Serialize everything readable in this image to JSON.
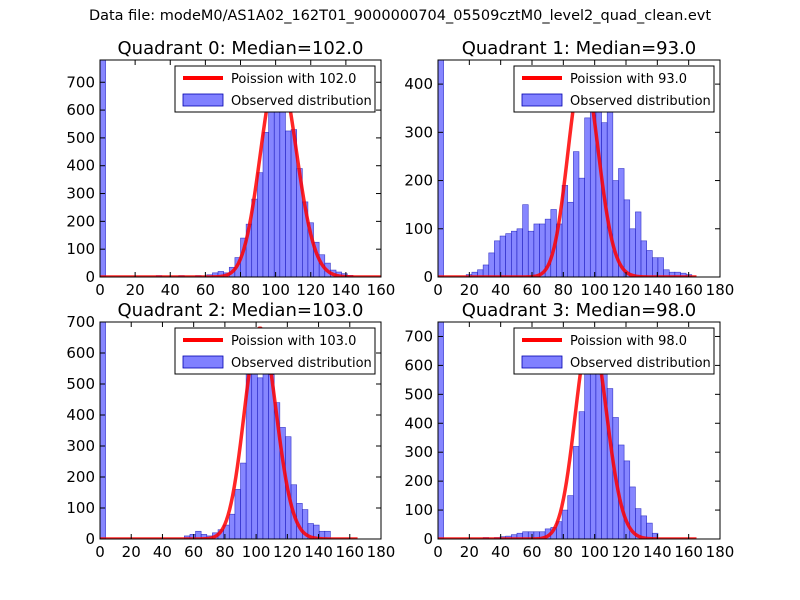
{
  "figure": {
    "suptitle": "Data file: modeM0/AS1A02_162T01_9000000704_05509cztM0_level2_quad_clean.evt"
  },
  "colors": {
    "poisson_line": "#ff0000",
    "histogram_fill": "#8080ff",
    "histogram_edge": "#0000b0"
  },
  "chart_data": [
    {
      "type": "bar",
      "title": "Quadrant 0: Median=102.0",
      "xlim": [
        0,
        160
      ],
      "ylim": [
        0,
        780
      ],
      "xticks": [
        0,
        20,
        40,
        60,
        80,
        100,
        120,
        140,
        160
      ],
      "yticks": [
        0,
        100,
        200,
        300,
        400,
        500,
        600,
        700
      ],
      "legend_position": "top-right",
      "legend": {
        "line_label": "Poission with 102.0",
        "hist_label": "Observed distribution"
      },
      "poisson_mean": 102.0,
      "poisson_peak": 750,
      "hist": {
        "bin_width": 3.2,
        "bin_starts": [
          0,
          32,
          44.8,
          54.4,
          60.8,
          64,
          67.2,
          70.4,
          73.6,
          76.8,
          80,
          83.2,
          86.4,
          89.6,
          92.8,
          96,
          99.2,
          102.4,
          105.6,
          108.8,
          112,
          115.2,
          118.4,
          121.6,
          124.8,
          128,
          131.2,
          134.4,
          137.6,
          140.8
        ],
        "counts": [
          780,
          5,
          5,
          5,
          8,
          15,
          20,
          15,
          35,
          70,
          140,
          190,
          280,
          375,
          520,
          645,
          720,
          600,
          525,
          530,
          390,
          270,
          195,
          125,
          80,
          50,
          25,
          18,
          12,
          6
        ]
      }
    },
    {
      "type": "bar",
      "title": "Quadrant 1: Median=93.0",
      "xlim": [
        0,
        180
      ],
      "ylim": [
        0,
        450
      ],
      "xticks": [
        0,
        20,
        40,
        60,
        80,
        100,
        120,
        140,
        160,
        180
      ],
      "yticks": [
        0,
        100,
        200,
        300,
        400
      ],
      "legend_position": "top-right",
      "legend": {
        "line_label": "Poission with 93.0",
        "hist_label": "Observed distribution"
      },
      "poisson_mean": 93.0,
      "poisson_peak": 430,
      "hist": {
        "bin_width": 3.6,
        "bin_starts": [
          0,
          18,
          21.6,
          25.2,
          28.8,
          32.4,
          36,
          39.6,
          43.2,
          46.8,
          50.4,
          54,
          57.6,
          61.2,
          64.8,
          68.4,
          72,
          75.6,
          79.2,
          82.8,
          86.4,
          90,
          93.6,
          97.2,
          100.8,
          104.4,
          108,
          111.6,
          115.2,
          118.8,
          122.4,
          126,
          129.6,
          133.2,
          136.8,
          140.4,
          144,
          147.6,
          151.2,
          154.8,
          158.4
        ],
        "counts": [
          450,
          5,
          10,
          15,
          25,
          50,
          75,
          85,
          90,
          95,
          100,
          150,
          95,
          110,
          110,
          120,
          140,
          110,
          190,
          155,
          260,
          205,
          330,
          350,
          420,
          320,
          370,
          200,
          225,
          160,
          100,
          135,
          75,
          55,
          40,
          40,
          15,
          10,
          10,
          8,
          5
        ]
      }
    },
    {
      "type": "bar",
      "title": "Quadrant 2: Median=103.0",
      "xlim": [
        0,
        180
      ],
      "ylim": [
        0,
        700
      ],
      "xticks": [
        0,
        20,
        40,
        60,
        80,
        100,
        120,
        140,
        160,
        180
      ],
      "yticks": [
        0,
        100,
        200,
        300,
        400,
        500,
        600,
        700
      ],
      "legend_position": "top-right",
      "legend": {
        "line_label": "Poission with 103.0",
        "hist_label": "Observed distribution"
      },
      "poisson_mean": 103.0,
      "poisson_peak": 680,
      "hist": {
        "bin_width": 3.6,
        "bin_starts": [
          0,
          54,
          57.6,
          61.2,
          64.8,
          68.4,
          72,
          75.6,
          79.2,
          82.8,
          86.4,
          90,
          93.6,
          97.2,
          100.8,
          104.4,
          108,
          111.6,
          115.2,
          118.8,
          122.4,
          126,
          129.6,
          133.2,
          136.8,
          140.4,
          144
        ],
        "counts": [
          700,
          10,
          15,
          25,
          15,
          10,
          20,
          30,
          45,
          80,
          160,
          245,
          535,
          605,
          520,
          625,
          530,
          440,
          360,
          330,
          175,
          115,
          95,
          50,
          45,
          25,
          25
        ]
      }
    },
    {
      "type": "bar",
      "title": "Quadrant 3: Median=98.0",
      "xlim": [
        0,
        180
      ],
      "ylim": [
        0,
        750
      ],
      "xticks": [
        0,
        20,
        40,
        60,
        80,
        100,
        120,
        140,
        160,
        180
      ],
      "yticks": [
        0,
        100,
        200,
        300,
        400,
        500,
        600,
        700
      ],
      "legend_position": "top-right",
      "legend": {
        "line_label": "Poission with 98.0",
        "hist_label": "Observed distribution"
      },
      "poisson_mean": 98.0,
      "poisson_peak": 720,
      "hist": {
        "bin_width": 3.6,
        "bin_starts": [
          0,
          28.8,
          36,
          39.6,
          43.2,
          46.8,
          50.4,
          54,
          57.6,
          61.2,
          64.8,
          68.4,
          72,
          75.6,
          79.2,
          82.8,
          86.4,
          90,
          93.6,
          97.2,
          100.8,
          104.4,
          108,
          111.6,
          115.2,
          118.8,
          122.4,
          126,
          129.6,
          133.2,
          136.8
        ],
        "counts": [
          750,
          5,
          5,
          8,
          10,
          15,
          20,
          25,
          25,
          25,
          25,
          35,
          40,
          60,
          100,
          150,
          320,
          440,
          590,
          675,
          655,
          600,
          520,
          420,
          325,
          270,
          180,
          105,
          80,
          55,
          20
        ]
      }
    }
  ]
}
